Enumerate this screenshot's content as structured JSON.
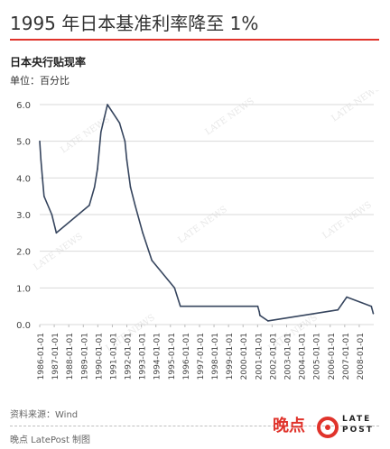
{
  "header": {
    "title": "1995 年日本基准利率降至 1%",
    "subtitle": "日本央行贴现率",
    "unit": "单位：百分比"
  },
  "watermark": "LATE NEWS",
  "footer": {
    "source": "资料来源：Wind",
    "credit": "晚点 LatePost 制图",
    "logo_cn": "晚点",
    "logo_word_top": "LATE",
    "logo_word_bottom": "POST"
  },
  "colors": {
    "line": "#36455e",
    "accent": "#e0332b",
    "grid": "#d9d9d9"
  },
  "chart_data": {
    "type": "line",
    "title": "日本央行贴现率",
    "ylabel": "单位：百分比",
    "ylim": [
      0,
      6
    ],
    "yticks": [
      "0.0",
      "1.0",
      "2.0",
      "3.0",
      "4.0",
      "5.0",
      "6.0"
    ],
    "xlim": [
      "1986-01-01",
      "2008-12-31"
    ],
    "xticks": [
      "1986-01-01",
      "1987-01-01",
      "1988-01-01",
      "1989-01-01",
      "1990-01-01",
      "1991-01-01",
      "1992-01-01",
      "1993-01-01",
      "1994-01-01",
      "1995-01-01",
      "1996-01-01",
      "1997-01-01",
      "1998-01-01",
      "1999-01-01",
      "2000-01-01",
      "2001-01-01",
      "2002-01-01",
      "2003-01-01",
      "2004-01-01",
      "2005-01-01",
      "2006-01-01",
      "2007-01-01",
      "2008-01-01"
    ],
    "grid": true,
    "series": [
      {
        "x": [
          "1986-01-01",
          "1986-01-30",
          "1986-03-10",
          "1986-04-21",
          "1986-11-01",
          "1987-02-23",
          "1989-05-31",
          "1989-10-11",
          "1989-12-25",
          "1990-03-20",
          "1990-08-30",
          "1991-07-01",
          "1991-11-14",
          "1991-12-30",
          "1992-04-01",
          "1992-07-27",
          "1993-02-04",
          "1993-09-21",
          "1995-04-14",
          "1995-09-08",
          "2001-01-04",
          "2001-02-13",
          "2001-03-01",
          "2001-09-19",
          "2006-07-14",
          "2007-02-21",
          "2008-10-31",
          "2008-12-19"
        ],
        "y": [
          5.0,
          4.5,
          4.0,
          3.5,
          3.0,
          2.5,
          3.25,
          3.75,
          4.25,
          5.25,
          6.0,
          5.5,
          5.0,
          4.5,
          3.75,
          3.25,
          2.5,
          1.75,
          1.0,
          0.5,
          0.5,
          0.35,
          0.25,
          0.1,
          0.4,
          0.75,
          0.5,
          0.3
        ]
      }
    ]
  }
}
